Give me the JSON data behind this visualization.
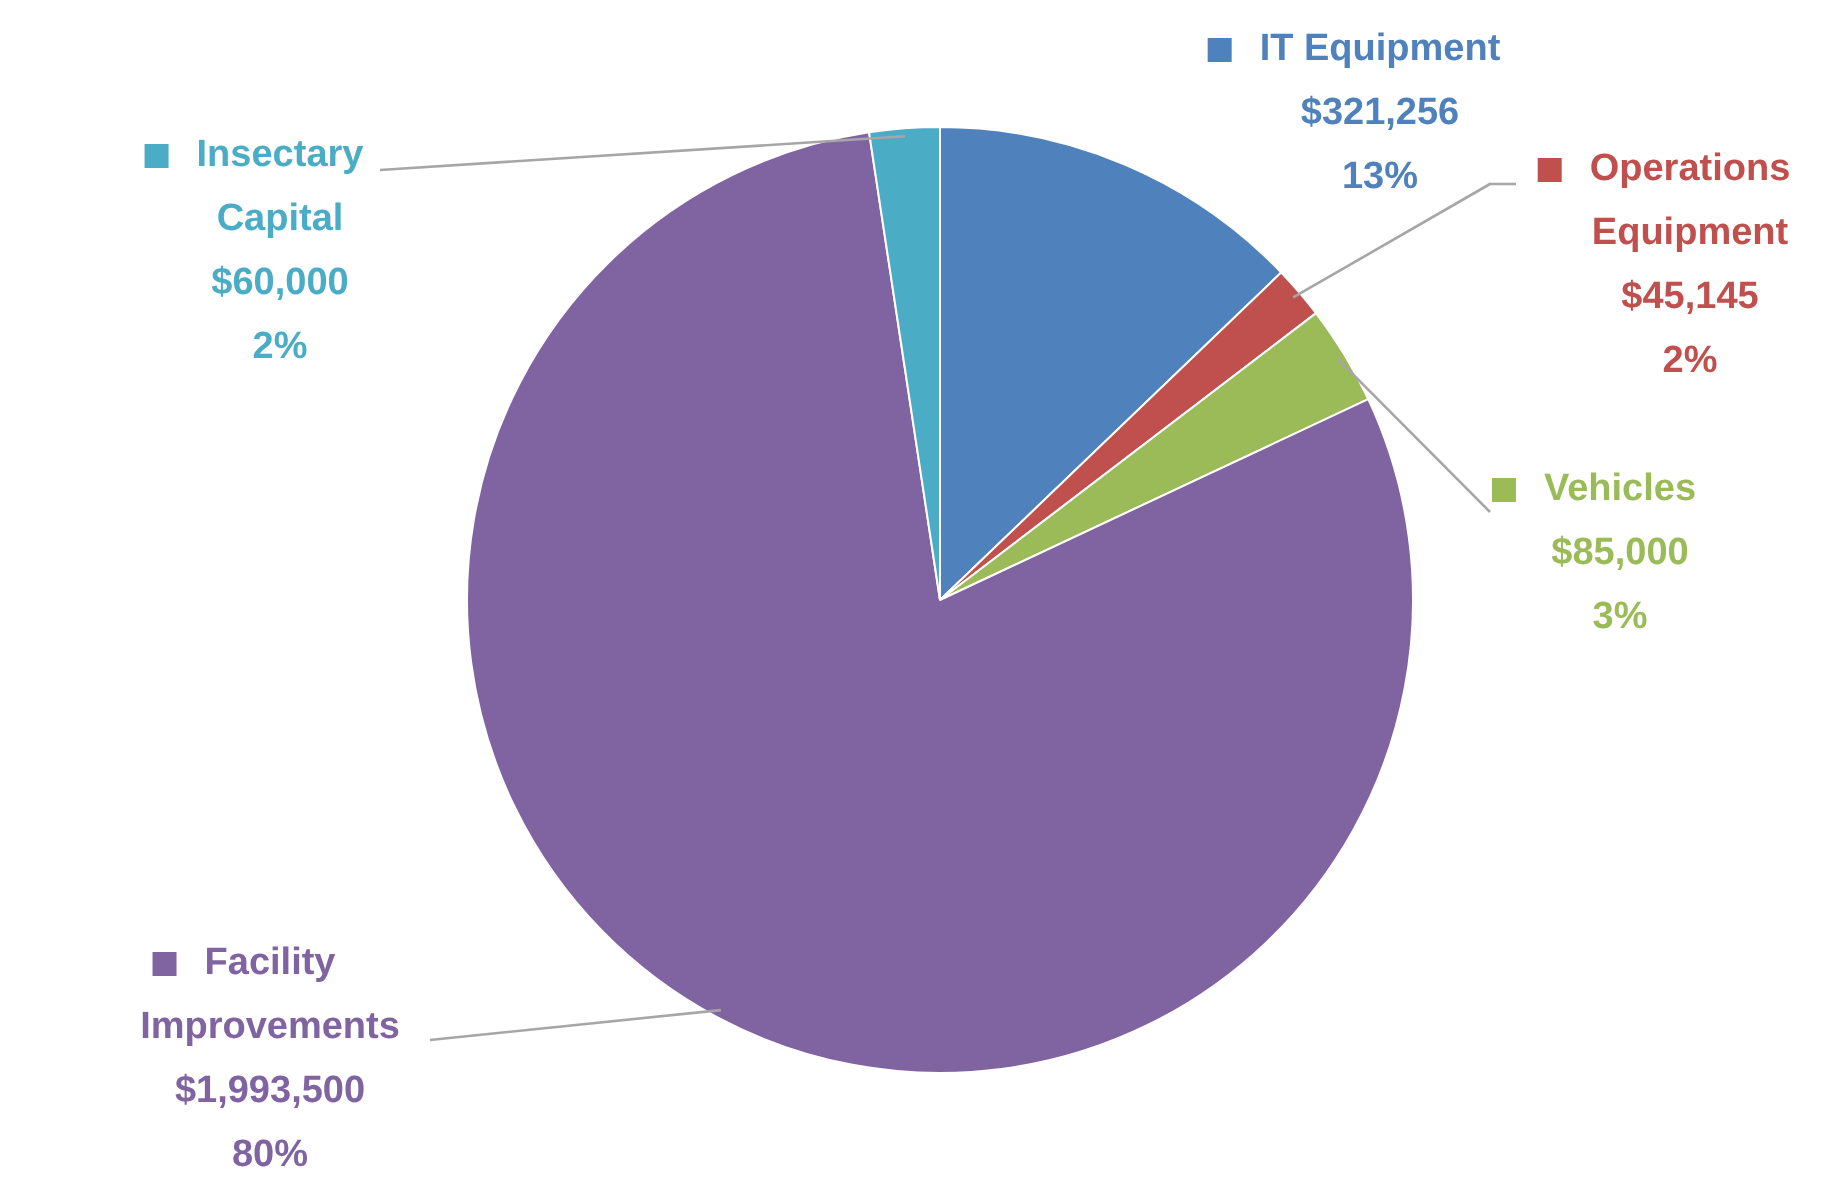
{
  "chart_data": {
    "type": "pie",
    "categories": [
      "IT Equipment",
      "Operations Equipment",
      "Vehicles",
      "Facility Improvements",
      "Insectary Capital"
    ],
    "values": [
      321256,
      45145,
      85000,
      1993500,
      60000
    ],
    "colors": [
      "#4f81bd",
      "#c0504d",
      "#9bbb59",
      "#8064a2",
      "#4bacc6"
    ],
    "value_labels": [
      "$321,256\n13%",
      "$45,145\n2%",
      "$85,000\n3%",
      "$1,993,500\n80%",
      "$60,000\n2%"
    ],
    "legend": "right"
  }
}
